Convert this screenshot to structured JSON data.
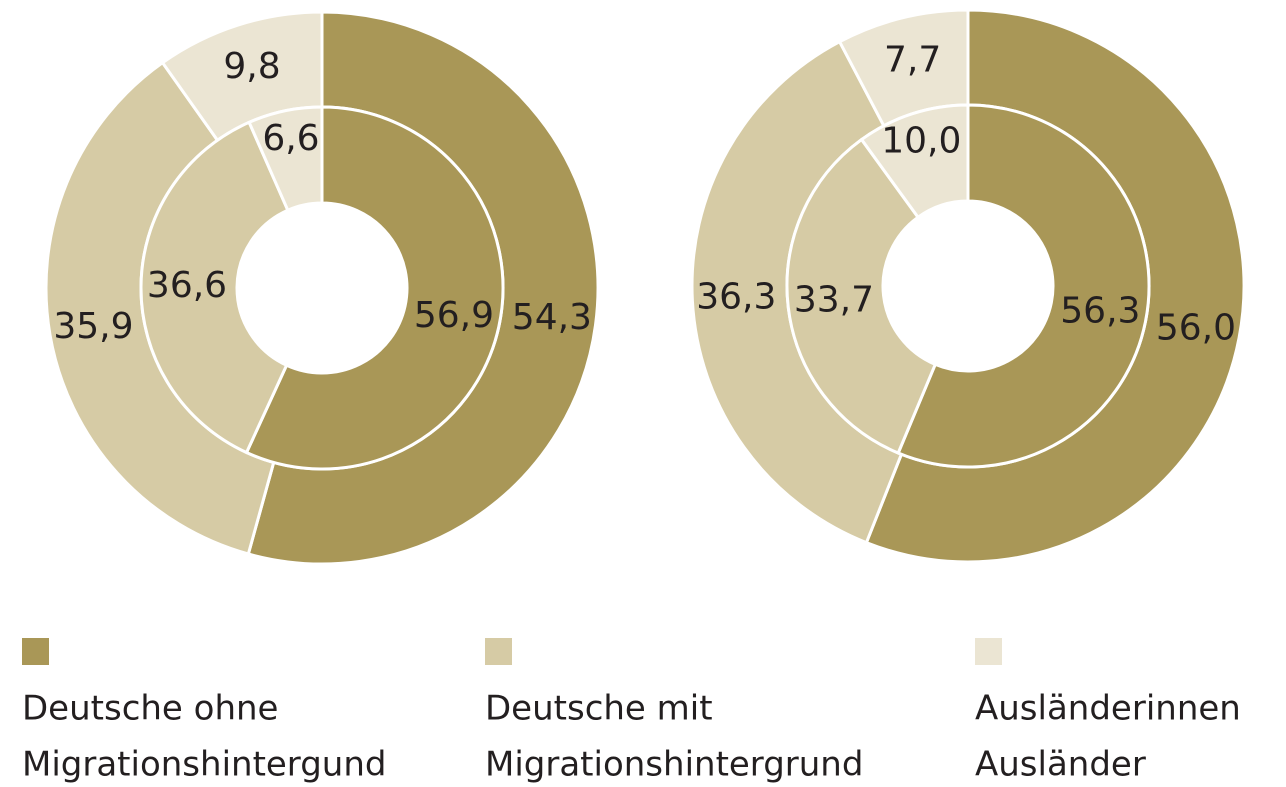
{
  "chart_data": [
    {
      "type": "pie",
      "rings": [
        {
          "values": [
            54.3,
            35.9,
            9.8
          ],
          "value_labels": [
            "54,3",
            "35,9",
            "9,8"
          ]
        },
        {
          "values": [
            56.9,
            36.6,
            6.6
          ],
          "value_labels": [
            "56,9",
            "36,6",
            "6,6"
          ]
        }
      ]
    },
    {
      "type": "pie",
      "rings": [
        {
          "values": [
            56.0,
            36.3,
            7.7
          ],
          "value_labels": [
            "56,0",
            "36,3",
            "7,7"
          ]
        },
        {
          "values": [
            56.3,
            33.7,
            10.0
          ],
          "value_labels": [
            "56,3",
            "33,7",
            "10,0"
          ]
        }
      ]
    }
  ],
  "legend": [
    {
      "name": [
        "Deutsche ohne",
        "Migrationshintergund"
      ],
      "color": "#a99757"
    },
    {
      "name": [
        "Deutsche mit",
        "Migrationshintergrund"
      ],
      "color": "#d6cba5"
    },
    {
      "name": [
        "Ausländerinnen",
        "Ausländer"
      ],
      "color": "#ebe5d3"
    }
  ]
}
